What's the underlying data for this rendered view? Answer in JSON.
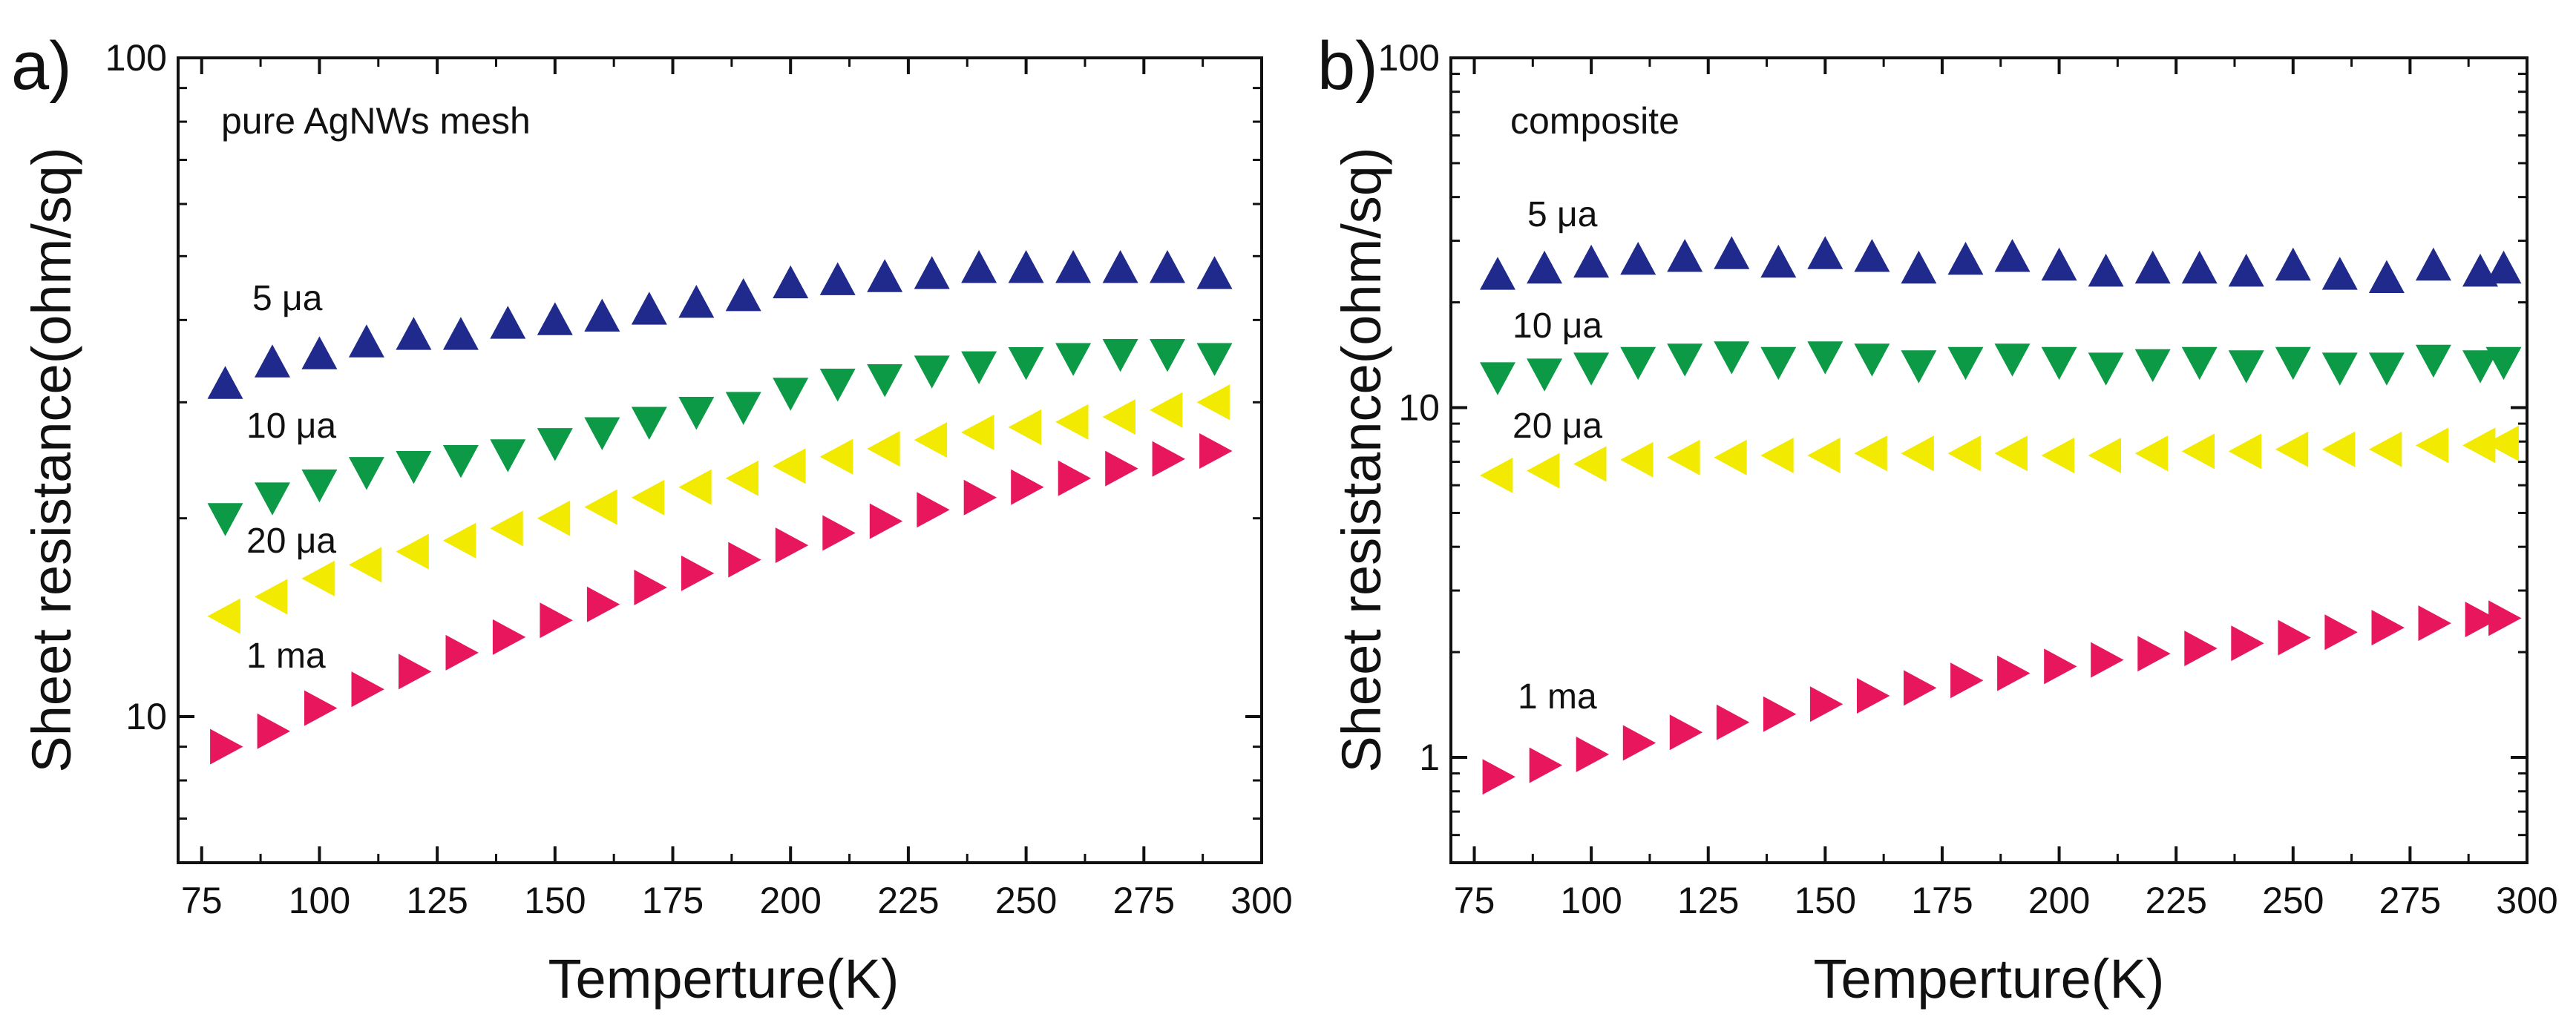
{
  "chart_data": [
    {
      "type": "scatter",
      "panel_label": "a)",
      "annotation": "pure AgNWs mesh",
      "xlabel": "Temperture(K)",
      "ylabel": "Sheet resistance(ohm/sq)",
      "xlim": [
        70,
        300
      ],
      "ylim": [
        6,
        100
      ],
      "yscale": "log",
      "xticks": [
        75,
        100,
        125,
        150,
        175,
        200,
        225,
        250,
        275,
        300
      ],
      "yticks": [
        10,
        100
      ],
      "series": [
        {
          "name": "5  μa",
          "marker": "triangle-up",
          "color": "#1f2a8c",
          "x": [
            80,
            90,
            100,
            110,
            120,
            130,
            140,
            150,
            160,
            170,
            180,
            190,
            200,
            210,
            220,
            230,
            240,
            250,
            260,
            270,
            280,
            290
          ],
          "y": [
            32,
            34.5,
            35.5,
            37,
            38,
            38,
            39.5,
            40,
            40.5,
            41.5,
            42.5,
            43.5,
            45.5,
            46,
            46.5,
            47,
            48,
            48,
            48,
            48,
            48,
            47
          ]
        },
        {
          "name": "10 μa",
          "marker": "triangle-down",
          "color": "#0c9a46",
          "x": [
            80,
            90,
            100,
            110,
            120,
            130,
            140,
            150,
            160,
            170,
            180,
            190,
            200,
            210,
            220,
            230,
            240,
            250,
            260,
            270,
            280,
            290
          ],
          "y": [
            20,
            21.5,
            22.5,
            23.5,
            24,
            24.5,
            25,
            26,
            27,
            28,
            29,
            29.5,
            31,
            32,
            32.5,
            33.5,
            34,
            34.5,
            35,
            35.5,
            35.5,
            35
          ]
        },
        {
          "name": "20 μa",
          "marker": "triangle-left",
          "color": "#f2ea00",
          "x": [
            80,
            90,
            100,
            110,
            120,
            130,
            140,
            150,
            160,
            170,
            180,
            190,
            200,
            210,
            220,
            230,
            240,
            250,
            260,
            270,
            280,
            290
          ],
          "y": [
            14.2,
            15.2,
            16.2,
            17,
            17.8,
            18.5,
            19.3,
            20,
            20.8,
            21.5,
            22.3,
            23,
            24,
            24.8,
            25.5,
            26.3,
            27,
            27.5,
            28,
            28.5,
            29.2,
            30
          ]
        },
        {
          "name": "1  ma",
          "marker": "triangle-right",
          "color": "#e8175d",
          "x": [
            80,
            90,
            100,
            110,
            120,
            130,
            140,
            150,
            160,
            170,
            180,
            190,
            200,
            210,
            220,
            230,
            240,
            250,
            260,
            270,
            280,
            290
          ],
          "y": [
            9,
            9.5,
            10.3,
            11,
            11.7,
            12.5,
            13.2,
            14,
            14.8,
            15.7,
            16.5,
            17.3,
            18.2,
            19,
            19.8,
            20.6,
            21.5,
            22.3,
            23,
            23.8,
            24.6,
            25.3
          ]
        }
      ]
    },
    {
      "type": "scatter",
      "panel_label": "b)",
      "annotation": "composite",
      "xlabel": "Temperture(K)",
      "ylabel": "Sheet resistance(ohm/sq)",
      "xlim": [
        70,
        300
      ],
      "ylim": [
        0.5,
        100
      ],
      "yscale": "log",
      "xticks": [
        75,
        100,
        125,
        150,
        175,
        200,
        225,
        250,
        275,
        300
      ],
      "yticks": [
        1,
        10,
        100
      ],
      "series": [
        {
          "name": "5  μa",
          "marker": "triangle-up",
          "color": "#1f2a8c",
          "x": [
            80,
            90,
            100,
            110,
            120,
            130,
            140,
            150,
            160,
            170,
            180,
            190,
            200,
            210,
            220,
            230,
            240,
            250,
            260,
            270,
            280,
            290,
            295
          ],
          "y": [
            24,
            25,
            26,
            26.5,
            27,
            27.5,
            26,
            27.5,
            27,
            25,
            26.5,
            27,
            25.5,
            24.5,
            25,
            25,
            24.5,
            25.5,
            24,
            23.5,
            25.5,
            24.5,
            25
          ]
        },
        {
          "name": "10 μa",
          "marker": "triangle-down",
          "color": "#0c9a46",
          "x": [
            80,
            90,
            100,
            110,
            120,
            130,
            140,
            150,
            160,
            170,
            180,
            190,
            200,
            210,
            220,
            230,
            240,
            250,
            260,
            270,
            280,
            290,
            295
          ],
          "y": [
            12.2,
            12.5,
            13,
            13.5,
            13.8,
            14,
            13.5,
            14,
            13.8,
            13.2,
            13.5,
            13.8,
            13.5,
            13,
            13.3,
            13.5,
            13.2,
            13.5,
            13,
            13,
            13.7,
            13.2,
            13.5
          ]
        },
        {
          "name": "20 μa",
          "marker": "triangle-left",
          "color": "#f2ea00",
          "x": [
            80,
            90,
            100,
            110,
            120,
            130,
            140,
            150,
            160,
            170,
            180,
            190,
            200,
            210,
            220,
            230,
            240,
            250,
            260,
            270,
            280,
            290,
            295
          ],
          "y": [
            6.4,
            6.6,
            6.9,
            7.1,
            7.2,
            7.2,
            7.3,
            7.3,
            7.4,
            7.4,
            7.4,
            7.4,
            7.3,
            7.3,
            7.4,
            7.5,
            7.5,
            7.6,
            7.6,
            7.6,
            7.8,
            7.8,
            7.9
          ]
        },
        {
          "name": "1  ma",
          "marker": "triangle-right",
          "color": "#e8175d",
          "x": [
            80,
            90,
            100,
            110,
            120,
            130,
            140,
            150,
            160,
            170,
            180,
            190,
            200,
            210,
            220,
            230,
            240,
            250,
            260,
            270,
            280,
            290,
            295
          ],
          "y": [
            0.88,
            0.95,
            1.02,
            1.1,
            1.18,
            1.26,
            1.33,
            1.42,
            1.5,
            1.58,
            1.66,
            1.74,
            1.82,
            1.9,
            1.98,
            2.05,
            2.12,
            2.2,
            2.28,
            2.35,
            2.42,
            2.48,
            2.5
          ]
        }
      ]
    }
  ]
}
